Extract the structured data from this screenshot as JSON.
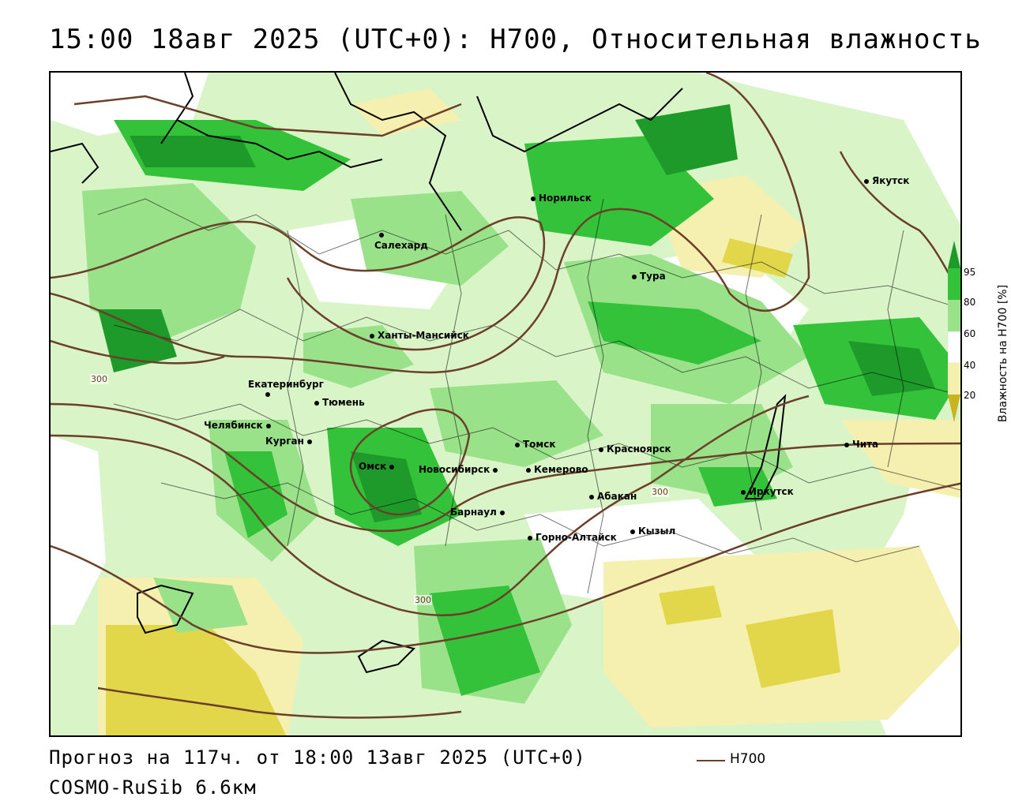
{
  "header": {
    "title": "15:00 18авг 2025 (UTC+0): H700, Относительная влажность"
  },
  "map": {
    "cities": [
      {
        "name": "Якутск"
      },
      {
        "name": "Норильск"
      },
      {
        "name": "Салехард"
      },
      {
        "name": "Тура"
      },
      {
        "name": "Ханты-Мансийск"
      },
      {
        "name": "Екатеринбург"
      },
      {
        "name": "Тюмень"
      },
      {
        "name": "Челябинск"
      },
      {
        "name": "Курган"
      },
      {
        "name": "Омск"
      },
      {
        "name": "Новосибирск"
      },
      {
        "name": "Томск"
      },
      {
        "name": "Кемерово"
      },
      {
        "name": "Красноярск"
      },
      {
        "name": "Барнаул"
      },
      {
        "name": "Абакан"
      },
      {
        "name": "Горно-Алтайск"
      },
      {
        "name": "Кызыл"
      },
      {
        "name": "Иркутск"
      },
      {
        "name": "Чита"
      }
    ],
    "contour_labels": [
      "300",
      "300",
      "300"
    ]
  },
  "colorbar": {
    "title": "Влажность на H700 [%]",
    "ticks": [
      "95",
      "80",
      "60",
      "40",
      "20"
    ],
    "colors": {
      "dark_green": "#1e9a2a",
      "green": "#34c23a",
      "light_green": "#99e28a",
      "pale_green": "#d9f5c8",
      "white": "#ffffff",
      "pale_yellow": "#f6f0b0",
      "yellow": "#e2d64a",
      "dark_yellow": "#c8b420"
    }
  },
  "footer": {
    "forecast": "Прогноз на 117ч. от 18:00 13авг 2025 (UTC+0)",
    "model": "COSMO-RuSib 6.6км",
    "legend_label": "H700",
    "legend_color": "#6b3f2a"
  }
}
